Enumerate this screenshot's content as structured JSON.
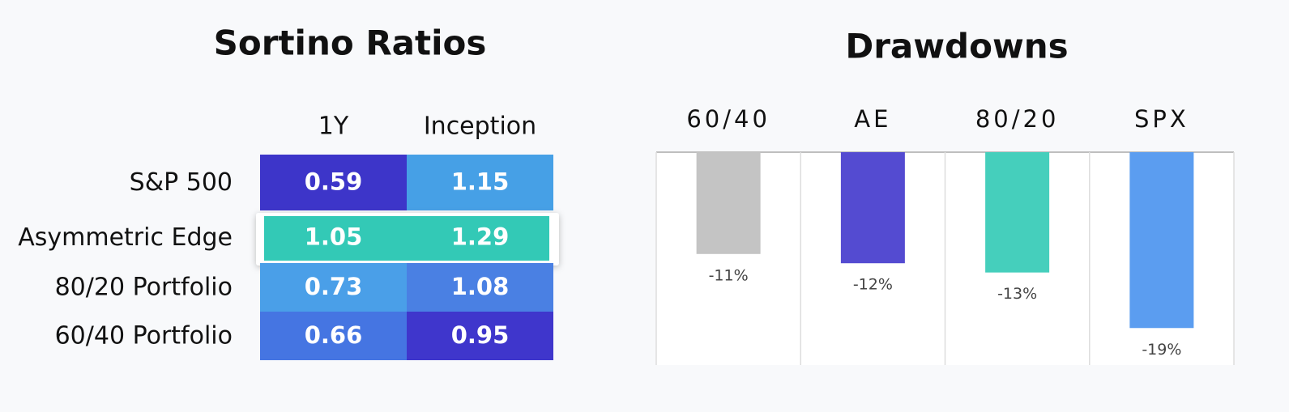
{
  "table": {
    "title": "Sortino Ratios",
    "columns": [
      "1Y",
      "Inception"
    ],
    "rows": [
      {
        "label": "S&P 500",
        "values": [
          0.59,
          1.15
        ],
        "colors": [
          "#3d35c9",
          "#46a0e6"
        ]
      },
      {
        "label": "Asymmetric Edge",
        "values": [
          1.05,
          1.29
        ],
        "colors": [
          "#33c9b6",
          "#33c9b6"
        ],
        "highlighted": true
      },
      {
        "label": "80/20 Portfolio",
        "values": [
          0.73,
          1.08
        ],
        "colors": [
          "#4a9fe8",
          "#4a80e3"
        ]
      },
      {
        "label": "60/40 Portfolio",
        "values": [
          0.66,
          0.95
        ],
        "colors": [
          "#4575e2",
          "#3f36cc"
        ]
      }
    ]
  },
  "chart_data": {
    "type": "bar",
    "title": "Drawdowns",
    "categories": [
      "60/40",
      "AE",
      "80/20",
      "SPX"
    ],
    "values": [
      -11,
      -12,
      -13,
      -19
    ],
    "value_labels": [
      "-11%",
      "-12%",
      "-13%",
      "-19%"
    ],
    "colors": [
      "#c4c4c4",
      "#544bd1",
      "#45cfbc",
      "#5b9df0"
    ],
    "ylim": [
      -23,
      0
    ]
  }
}
